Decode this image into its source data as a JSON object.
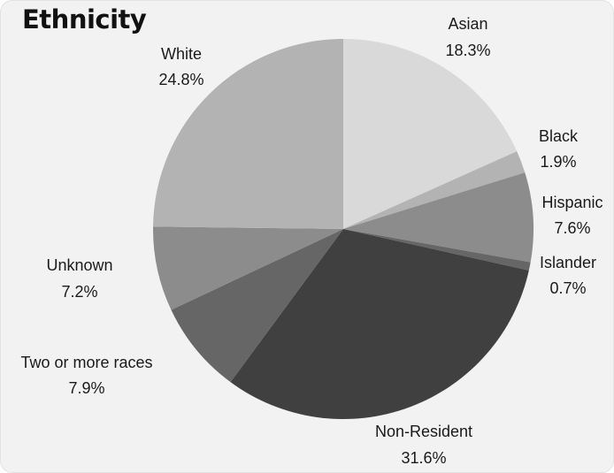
{
  "chart_data": {
    "type": "pie",
    "title": "Ethnicity",
    "slices": [
      {
        "label": "Asian",
        "percent_label": "18.3%",
        "value": 18.3,
        "color": "#d9d9d9"
      },
      {
        "label": "Black",
        "percent_label": "1.9%",
        "value": 1.9,
        "color": "#b3b3b3"
      },
      {
        "label": "Hispanic",
        "percent_label": "7.6%",
        "value": 7.6,
        "color": "#8c8c8c"
      },
      {
        "label": "Islander",
        "percent_label": "0.7%",
        "value": 0.7,
        "color": "#666666"
      },
      {
        "label": "Non-Resident",
        "percent_label": "31.6%",
        "value": 31.6,
        "color": "#404040"
      },
      {
        "label": "Two or more races",
        "percent_label": "7.9%",
        "value": 7.9,
        "color": "#666666"
      },
      {
        "label": "Unknown",
        "percent_label": "7.2%",
        "value": 7.2,
        "color": "#8c8c8c"
      },
      {
        "label": "White",
        "percent_label": "24.8%",
        "value": 24.8,
        "color": "#b3b3b3"
      }
    ]
  }
}
